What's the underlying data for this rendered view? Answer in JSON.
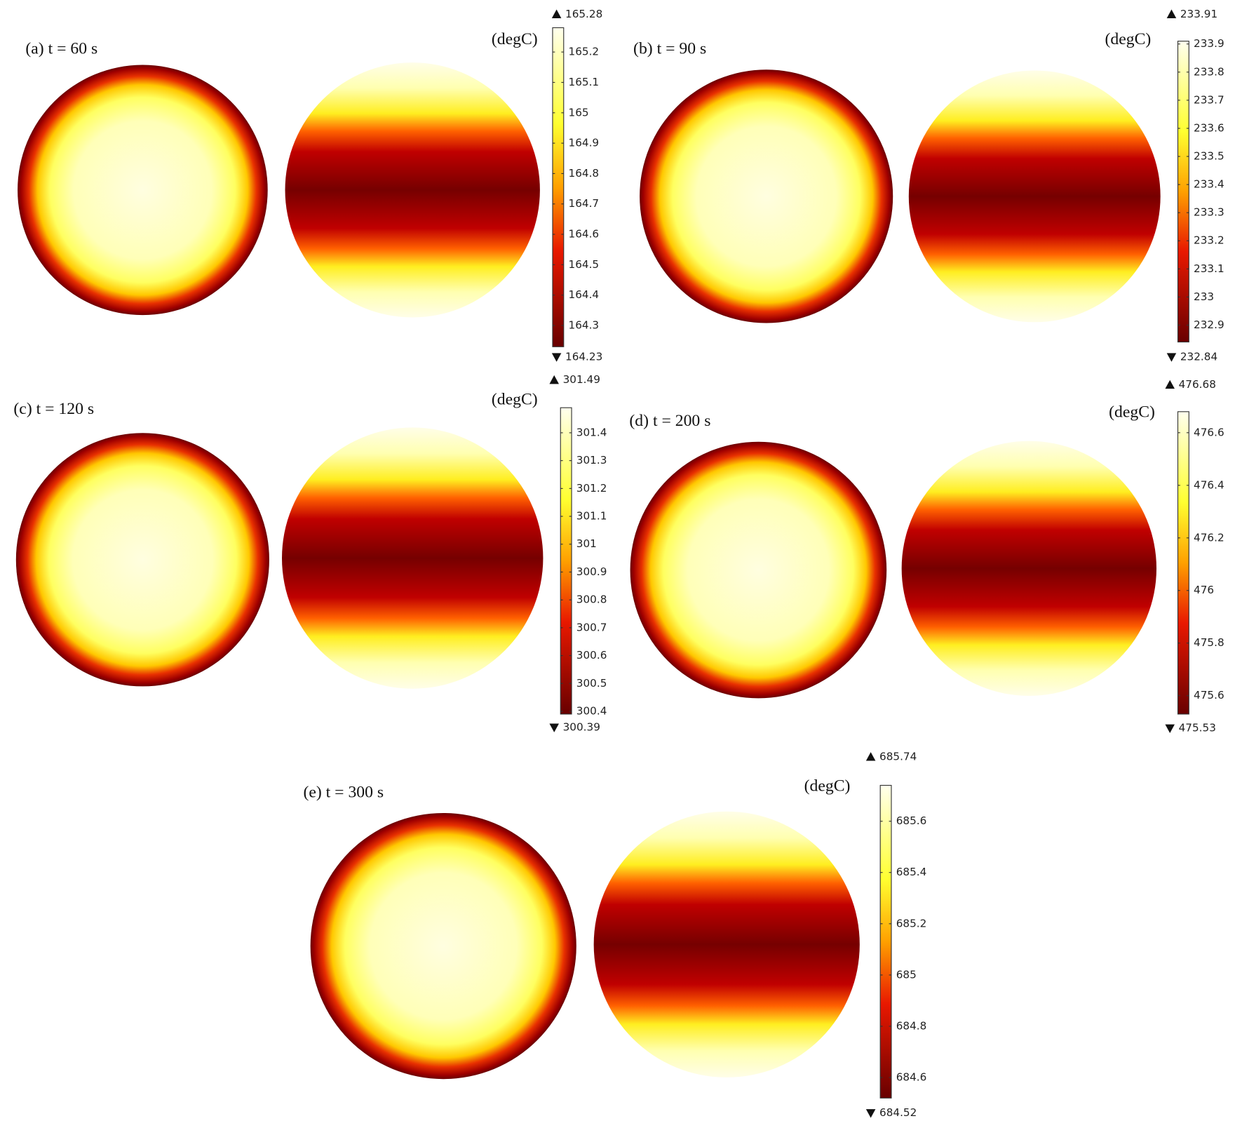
{
  "panels": [
    {
      "label": "(a) t = 60 s",
      "unit": "(degC)",
      "max": 165.28,
      "min": 164.23,
      "ticks": [
        165.2,
        165.1,
        165,
        164.9,
        164.8,
        164.7,
        164.6,
        164.5,
        164.4,
        164.3
      ]
    },
    {
      "label": "(b) t = 90 s",
      "unit": "(degC)",
      "max": 233.91,
      "min": 232.84,
      "ticks": [
        233.9,
        233.8,
        233.7,
        233.6,
        233.5,
        233.4,
        233.3,
        233.2,
        233.1,
        233,
        232.9
      ]
    },
    {
      "label": "(c) t = 120 s",
      "unit": "(degC)",
      "max": 301.49,
      "min": 300.39,
      "ticks": [
        301.4,
        301.3,
        301.2,
        301.1,
        301,
        300.9,
        300.8,
        300.7,
        300.6,
        300.5,
        300.4
      ]
    },
    {
      "label": "(d) t = 200 s",
      "unit": "(degC)",
      "max": 476.68,
      "min": 475.53,
      "ticks": [
        476.6,
        476.4,
        476.2,
        476,
        475.8,
        475.6
      ]
    },
    {
      "label": "(e) t = 300 s",
      "unit": "(degC)",
      "max": 685.74,
      "min": 684.52,
      "ticks": [
        685.6,
        685.4,
        685.2,
        685,
        684.8,
        684.6
      ]
    }
  ]
}
